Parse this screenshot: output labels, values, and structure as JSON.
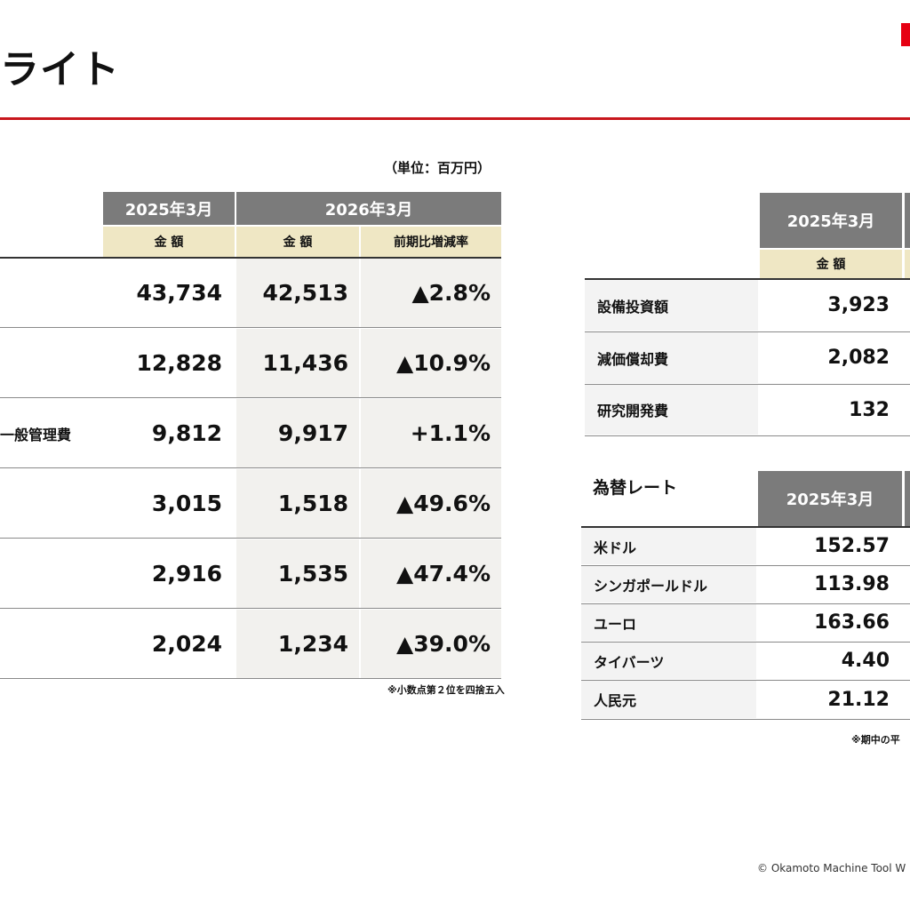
{
  "page": {
    "title": "ライト",
    "copyright": "© Okamoto Machine Tool W"
  },
  "left_table": {
    "unit": "（単位：百万円）",
    "header_2025": "2025年3月",
    "header_2026": "2026年3月",
    "sub_amount": "金 額",
    "sub_change": "前期比増減率",
    "rows": [
      {
        "label": "",
        "v2025": "43,734",
        "v2026": "42,513",
        "change": "▲2.8%"
      },
      {
        "label": "",
        "v2025": "12,828",
        "v2026": "11,436",
        "change": "▲10.9%"
      },
      {
        "label": "一般管理費",
        "v2025": "9,812",
        "v2026": "9,917",
        "change": "+1.1%"
      },
      {
        "label": "",
        "v2025": "3,015",
        "v2026": "1,518",
        "change": "▲49.6%"
      },
      {
        "label": "",
        "v2025": "2,916",
        "v2026": "1,535",
        "change": "▲47.4%"
      },
      {
        "label": "",
        "v2025": "2,024",
        "v2026": "1,234",
        "change": "▲39.0%"
      }
    ],
    "note": "※小数点第２位を四捨五入"
  },
  "capex_table": {
    "header_2025": "2025年3月",
    "sub_amount": "金 額",
    "rows": [
      {
        "label": "設備投資額",
        "v2025": "3,923"
      },
      {
        "label": "減価償却費",
        "v2025": "2,082"
      },
      {
        "label": "研究開発費",
        "v2025": "132"
      }
    ]
  },
  "fx_table": {
    "title": "為替レート",
    "header_2025": "2025年3月",
    "rows": [
      {
        "label": "米ドル",
        "v2025": "152.57"
      },
      {
        "label": "シンガポールドル",
        "v2025": "113.98"
      },
      {
        "label": "ユーロ",
        "v2025": "163.66"
      },
      {
        "label": "タイバーツ",
        "v2025": "4.40"
      },
      {
        "label": "人民元",
        "v2025": "21.12"
      }
    ],
    "note": "※期中の平"
  },
  "colors": {
    "accent": "#c8161d",
    "header_dark": "#7b7b7b",
    "header_beige": "#efe7c4"
  }
}
